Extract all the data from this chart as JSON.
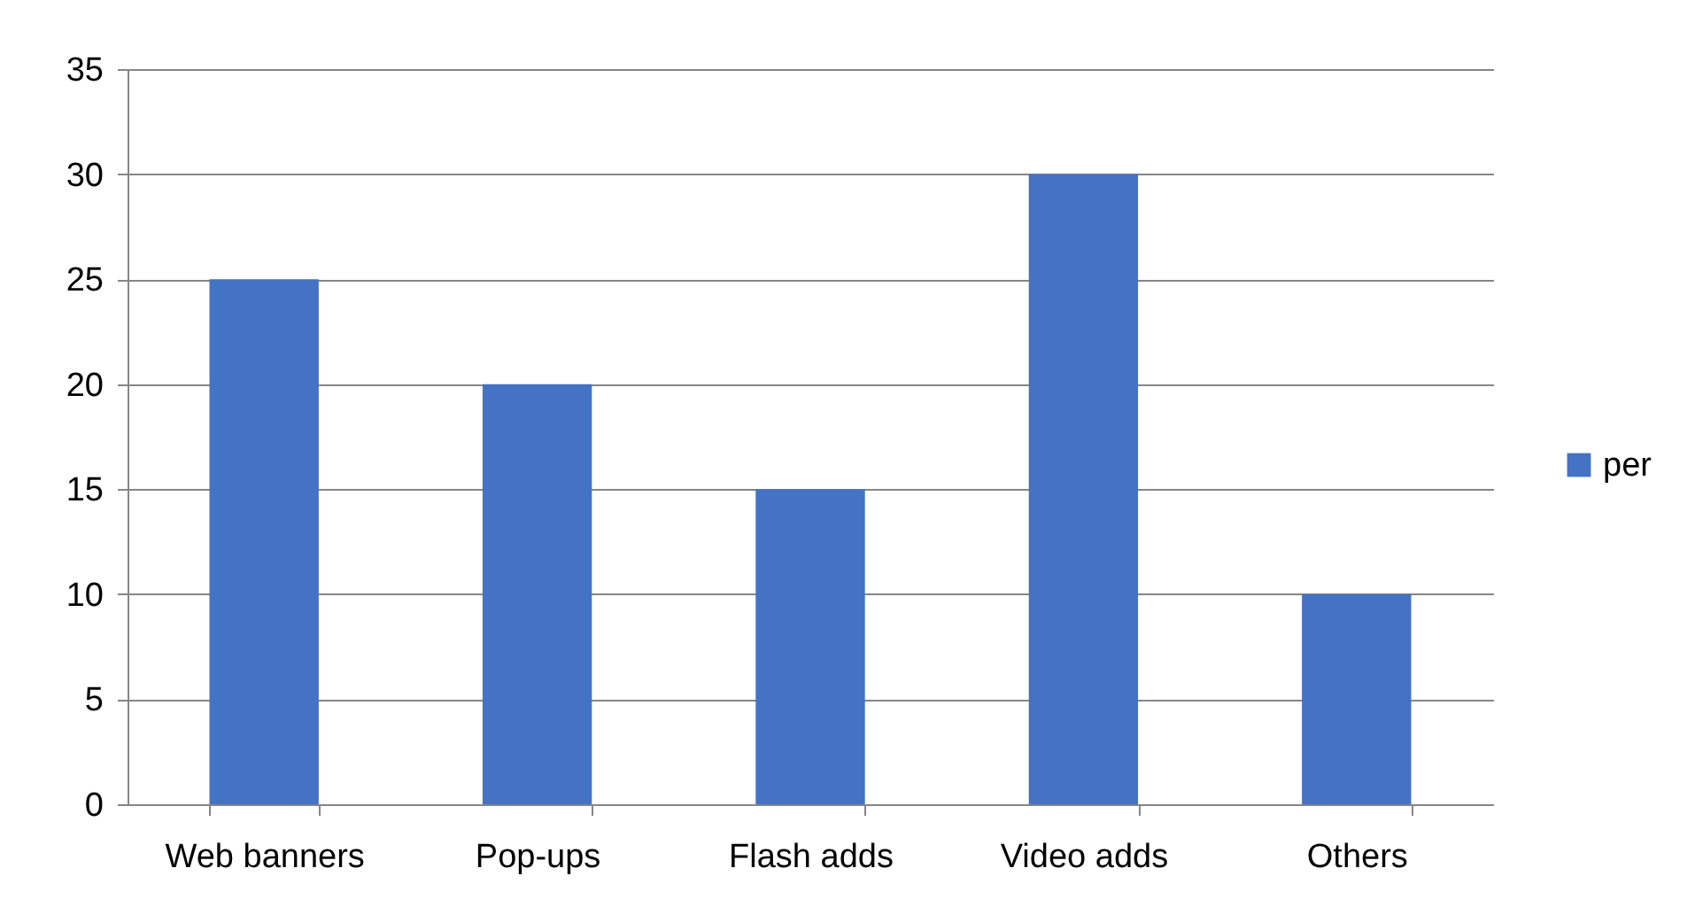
{
  "chart_data": {
    "type": "bar",
    "categories": [
      "Web banners",
      "Pop-ups",
      "Flash adds",
      "Video adds",
      "Others"
    ],
    "series": [
      {
        "name": "per",
        "color": "#4472c4",
        "values": [
          25,
          20,
          15,
          30,
          10
        ]
      }
    ],
    "ylim": [
      0,
      35
    ],
    "yticks": [
      0,
      5,
      10,
      15,
      20,
      25,
      30,
      35
    ],
    "grid": "y",
    "legend": "right"
  }
}
